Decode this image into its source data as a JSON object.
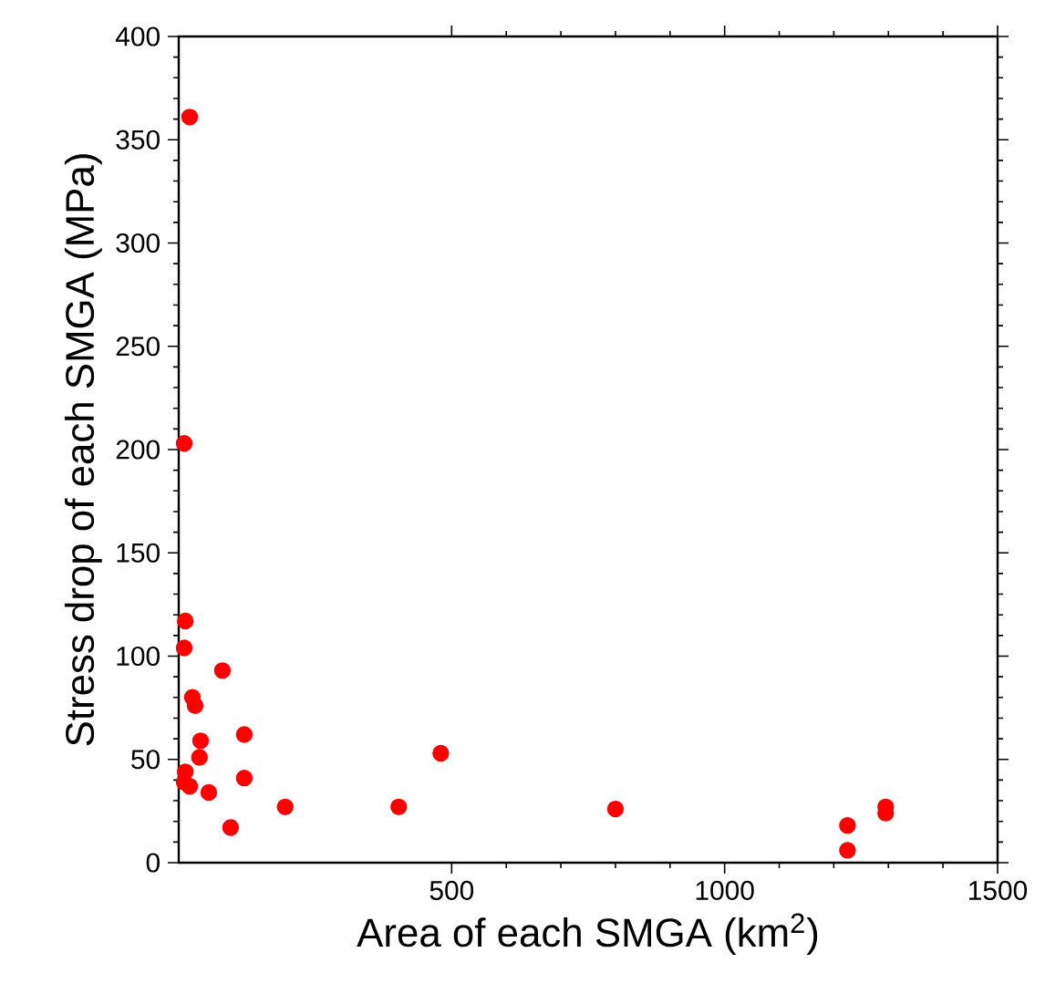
{
  "chart_data": {
    "type": "scatter",
    "xlabel": "Area of each SMGA (km$^{2}$)",
    "ylabel": "Stress drop of each SMGA (MPa)",
    "xlim": [
      0,
      1500
    ],
    "ylim": [
      0,
      400
    ],
    "xticks": [
      500,
      1000,
      1500
    ],
    "yticks": [
      0,
      50,
      100,
      150,
      200,
      250,
      300,
      350,
      400
    ],
    "series": [
      {
        "color": "#ff0000",
        "x": [
          20,
          10,
          12,
          10,
          80,
          25,
          30,
          40,
          38,
          120,
          120,
          12,
          20,
          10,
          55,
          95,
          195,
          403,
          480,
          800,
          1225,
          1225,
          1295,
          1295
        ],
        "values": [
          361,
          203,
          117,
          104,
          93,
          80,
          76,
          59,
          51,
          62,
          41,
          44,
          37,
          39,
          34,
          17,
          27,
          27,
          53,
          26,
          18,
          6,
          27,
          24
        ]
      }
    ]
  }
}
